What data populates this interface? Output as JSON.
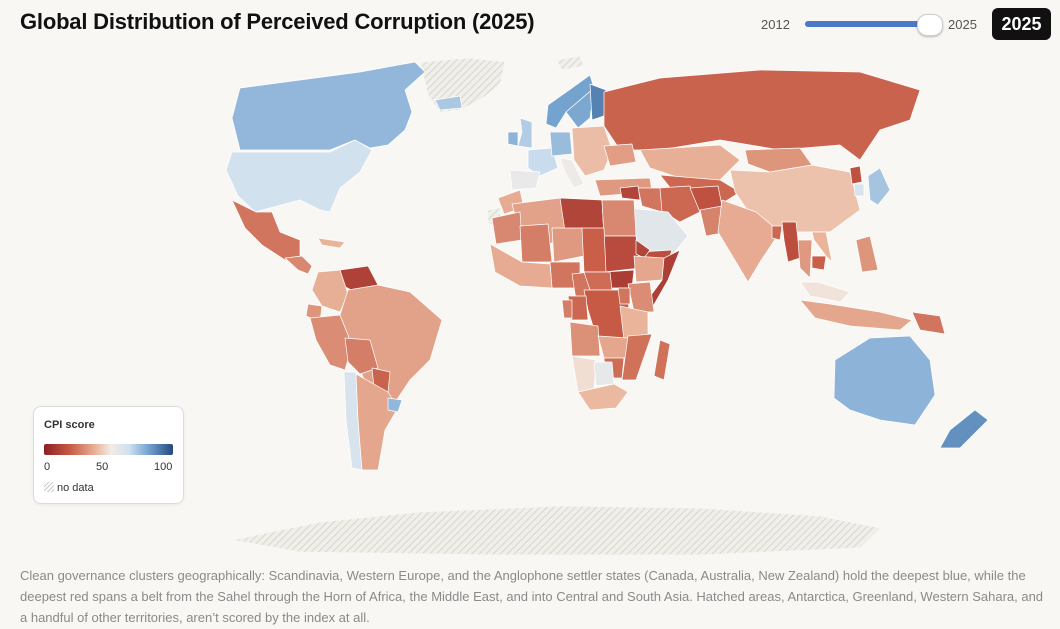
{
  "header": {
    "title": "Global Distribution of Perceived Corruption (2025)",
    "year_min_label": "2012",
    "year_max_label": "2025",
    "selected_year": "2025",
    "slider": {
      "min": 2012,
      "max": 2025,
      "value": 2025
    }
  },
  "legend": {
    "title": "CPI score",
    "ticks": [
      "0",
      "50",
      "100"
    ],
    "no_data_label": "no data"
  },
  "colors": {
    "score_0": "#8c1f24",
    "score_50": "#f3ece6",
    "score_100": "#23487f",
    "accent": "#4c78c8",
    "no_data": "#c9c9c9"
  },
  "regions": [
    {
      "name": "Canada",
      "score": 76
    },
    {
      "name": "United States",
      "score": 65
    },
    {
      "name": "Mexico",
      "score": 26
    },
    {
      "name": "Central America",
      "score": 30
    },
    {
      "name": "Cuba",
      "score": 40
    },
    {
      "name": "Venezuela",
      "score": 12
    },
    {
      "name": "Colombia",
      "score": 39
    },
    {
      "name": "Ecuador",
      "score": 33
    },
    {
      "name": "Peru",
      "score": 31
    },
    {
      "name": "Brazil",
      "score": 36
    },
    {
      "name": "Bolivia",
      "score": 28
    },
    {
      "name": "Paraguay",
      "score": 22
    },
    {
      "name": "Chile",
      "score": 63
    },
    {
      "name": "Argentina",
      "score": 37
    },
    {
      "name": "Uruguay",
      "score": 76
    },
    {
      "name": "Iceland",
      "score": 72
    },
    {
      "name": "United Kingdom",
      "score": 71
    },
    {
      "name": "Ireland",
      "score": 77
    },
    {
      "name": "France",
      "score": 67
    },
    {
      "name": "Spain",
      "score": 56
    },
    {
      "name": "Germany",
      "score": 75
    },
    {
      "name": "Italy",
      "score": 54
    },
    {
      "name": "Norway",
      "score": 81
    },
    {
      "name": "Sweden",
      "score": 80
    },
    {
      "name": "Finland",
      "score": 88
    },
    {
      "name": "Eastern Europe",
      "score": 42
    },
    {
      "name": "Russia",
      "score": 22
    },
    {
      "name": "Ukraine",
      "score": 35
    },
    {
      "name": "Turkey",
      "score": 34
    },
    {
      "name": "Kazakhstan",
      "score": 39
    },
    {
      "name": "Central Asia",
      "score": 23
    },
    {
      "name": "Mongolia",
      "score": 33
    },
    {
      "name": "China",
      "score": 43
    },
    {
      "name": "North Korea",
      "score": 17
    },
    {
      "name": "Japan",
      "score": 73
    },
    {
      "name": "South Korea",
      "score": 63
    },
    {
      "name": "Iran",
      "score": 23
    },
    {
      "name": "Iraq",
      "score": 26
    },
    {
      "name": "Syria",
      "score": 13
    },
    {
      "name": "Saudi Arabia",
      "score": 59
    },
    {
      "name": "Yemen",
      "score": 16
    },
    {
      "name": "Afghanistan",
      "score": 17
    },
    {
      "name": "Pakistan",
      "score": 29
    },
    {
      "name": "India",
      "score": 38
    },
    {
      "name": "Bangladesh",
      "score": 23
    },
    {
      "name": "Myanmar",
      "score": 16
    },
    {
      "name": "Thailand",
      "score": 34
    },
    {
      "name": "Cambodia",
      "score": 21
    },
    {
      "name": "Vietnam",
      "score": 40
    },
    {
      "name": "Philippines",
      "score": 33
    },
    {
      "name": "Malaysia",
      "score": 50
    },
    {
      "name": "Indonesia",
      "score": 37
    },
    {
      "name": "Papua New Guinea",
      "score": 26
    },
    {
      "name": "Australia",
      "score": 77
    },
    {
      "name": "New Zealand",
      "score": 85
    },
    {
      "name": "Morocco",
      "score": 38
    },
    {
      "name": "Algeria",
      "score": 36
    },
    {
      "name": "Libya",
      "score": 13
    },
    {
      "name": "Egypt",
      "score": 30
    },
    {
      "name": "Sudan",
      "score": 15
    },
    {
      "name": "South Sudan",
      "score": 10
    },
    {
      "name": "Eritrea",
      "score": 13
    },
    {
      "name": "Ethiopia",
      "score": 37
    },
    {
      "name": "Somalia",
      "score": 11
    },
    {
      "name": "Mauritania",
      "score": 30
    },
    {
      "name": "Mali",
      "score": 28
    },
    {
      "name": "Niger",
      "score": 34
    },
    {
      "name": "Chad",
      "score": 21
    },
    {
      "name": "Nigeria",
      "score": 26
    },
    {
      "name": "West Africa",
      "score": 38
    },
    {
      "name": "Cameroon",
      "score": 26
    },
    {
      "name": "Central African Republic",
      "score": 24
    },
    {
      "name": "DR Congo",
      "score": 20
    },
    {
      "name": "Congo",
      "score": 23
    },
    {
      "name": "Gabon",
      "score": 28
    },
    {
      "name": "Kenya",
      "score": 31
    },
    {
      "name": "Uganda",
      "score": 26
    },
    {
      "name": "Tanzania",
      "score": 40
    },
    {
      "name": "Angola",
      "score": 32
    },
    {
      "name": "Zambia",
      "score": 37
    },
    {
      "name": "Mozambique",
      "score": 25
    },
    {
      "name": "Zimbabwe",
      "score": 24
    },
    {
      "name": "Madagascar",
      "score": 25
    },
    {
      "name": "Namibia",
      "score": 49
    },
    {
      "name": "Botswana",
      "score": 57
    },
    {
      "name": "South Africa",
      "score": 41
    }
  ],
  "no_data_regions": [
    "Greenland",
    "Svalbard",
    "Antarctica",
    "Western Sahara"
  ],
  "caption": "Clean governance clusters geographically: Scandinavia, Western Europe, and the Anglophone settler states (Canada, Australia, New Zealand) hold the deepest blue, while the deepest red spans a belt from the Sahel through the Horn of Africa, the Middle East, and into Central and South Asia. Hatched areas, Antarctica, Greenland, Western Sahara, and a handful of other territories, aren’t scored by the index at all."
}
